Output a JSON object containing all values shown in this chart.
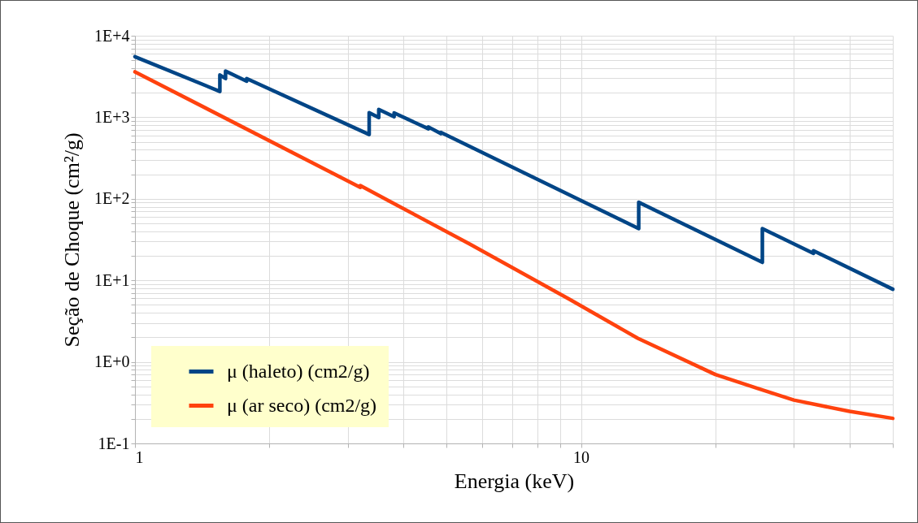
{
  "chart_data": {
    "type": "line",
    "xlabel": "Energia (keV)",
    "ylabel": "Seção de Choque (cm²/g)",
    "log": "xy",
    "grid": true,
    "legend": "bottom left",
    "line_style": "solid",
    "xlim": [
      1,
      50
    ],
    "ylim": [
      0.1,
      10000
    ],
    "xticks": [
      1,
      {
        "value": 2,
        "label": null
      },
      {
        "value": 3,
        "label": null
      },
      {
        "value": 4,
        "label": null
      },
      {
        "value": 5,
        "label": null
      },
      {
        "value": 6,
        "label": null
      },
      {
        "value": 7,
        "label": null
      },
      {
        "value": 8,
        "label": null
      },
      {
        "value": 9,
        "label": null
      },
      10,
      {
        "value": 20,
        "label": null
      },
      {
        "value": 30,
        "label": null
      },
      {
        "value": 40,
        "label": null
      },
      {
        "value": 50,
        "label": null
      }
    ],
    "yticks": [
      {
        "value": 0.1,
        "label": "1E-1"
      },
      {
        "value": 0.2,
        "label": null
      },
      {
        "value": 0.3,
        "label": null
      },
      {
        "value": 0.4,
        "label": null
      },
      {
        "value": 0.5,
        "label": null
      },
      {
        "value": 0.6,
        "label": null
      },
      {
        "value": 0.7,
        "label": null
      },
      {
        "value": 0.8,
        "label": null
      },
      {
        "value": 0.9,
        "label": null
      },
      {
        "value": 1,
        "label": "1E+0"
      },
      {
        "value": 2,
        "label": null
      },
      {
        "value": 3,
        "label": null
      },
      {
        "value": 4,
        "label": null
      },
      {
        "value": 5,
        "label": null
      },
      {
        "value": 6,
        "label": null
      },
      {
        "value": 7,
        "label": null
      },
      {
        "value": 8,
        "label": null
      },
      {
        "value": 9,
        "label": null
      },
      {
        "value": 10,
        "label": "1E+1"
      },
      {
        "value": 20,
        "label": null
      },
      {
        "value": 30,
        "label": null
      },
      {
        "value": 40,
        "label": null
      },
      {
        "value": 50,
        "label": null
      },
      {
        "value": 60,
        "label": null
      },
      {
        "value": 70,
        "label": null
      },
      {
        "value": 80,
        "label": null
      },
      {
        "value": 90,
        "label": null
      },
      {
        "value": 100,
        "label": "1E+2"
      },
      {
        "value": 200,
        "label": null
      },
      {
        "value": 300,
        "label": null
      },
      {
        "value": 400,
        "label": null
      },
      {
        "value": 500,
        "label": null
      },
      {
        "value": 600,
        "label": null
      },
      {
        "value": 700,
        "label": null
      },
      {
        "value": 800,
        "label": null
      },
      {
        "value": 900,
        "label": null
      },
      {
        "value": 1000,
        "label": "1E+3"
      },
      {
        "value": 2000,
        "label": null
      },
      {
        "value": 3000,
        "label": null
      },
      {
        "value": 4000,
        "label": null
      },
      {
        "value": 5000,
        "label": null
      },
      {
        "value": 6000,
        "label": null
      },
      {
        "value": 7000,
        "label": null
      },
      {
        "value": 8000,
        "label": null
      },
      {
        "value": 9000,
        "label": null
      },
      {
        "value": 10000,
        "label": "1E+4"
      }
    ],
    "series": [
      {
        "name": "μ (haleto) (cm2/g)",
        "color": "#004586",
        "x": [
          1,
          1.55,
          1.55,
          1.596,
          1.596,
          1.78,
          1.78,
          3.35,
          3.35,
          3.52,
          3.52,
          3.81,
          3.81,
          4.55,
          4.55,
          4.85,
          4.85,
          13.47,
          13.47,
          25.5,
          25.5,
          33.2,
          33.2,
          50
        ],
        "values": [
          5530,
          2075,
          3300,
          2985,
          3690,
          2770,
          2985,
          615,
          1138,
          993,
          1248,
          1016,
          1130,
          721,
          760,
          630,
          653,
          43.1,
          90.6,
          16.6,
          43.1,
          21.4,
          23.1,
          7.78
        ]
      },
      {
        "name": "μ (ar seco) (cm2/g)",
        "color": "#ff420e",
        "x": [
          1,
          3.2,
          3.2,
          5.63,
          9.42,
          13.4,
          20,
          25,
          30,
          40,
          50
        ],
        "values": [
          3610,
          138,
          145,
          27.9,
          5.87,
          1.95,
          0.7,
          0.47,
          0.34,
          0.247,
          0.203
        ]
      }
    ]
  }
}
